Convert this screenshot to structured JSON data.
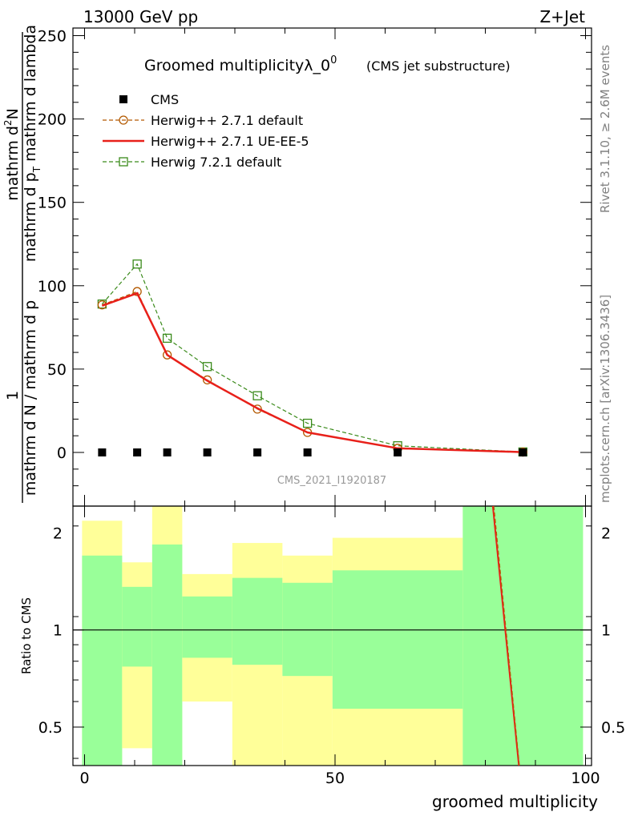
{
  "header": {
    "left": "13000 GeV pp",
    "right": "Z+Jet"
  },
  "side_labels": {
    "rivet": "Rivet 3.1.10, ≥ 2.6M events",
    "mcplots": "mcplots.cern.ch [arXiv:1306.3436]"
  },
  "chart_data": {
    "type": "line",
    "title": "Groomed multiplicityλ_0",
    "title_superscript": "0",
    "subtitle": "(CMS jet substructure)",
    "watermark": "CMS_2021_I1920187",
    "ylabel": {
      "numerator_left": "1",
      "denominator_left": "mathrm d N / mathrm d p",
      "numerator_right": "mathrm d",
      "numerator_right_sup": "2",
      "numerator_right_tail": "N",
      "denominator_right": "mathrm d p",
      "denominator_right_mid": " mathrm d lambda",
      "sub_T": "T"
    },
    "xlabel": "groomed multiplicity",
    "xlim": [
      -2,
      100
    ],
    "ylim": [
      -30,
      255
    ],
    "yticks": [
      "0",
      "50",
      "100",
      "150",
      "200",
      "250"
    ],
    "xticks": [
      "0",
      "50",
      "100"
    ],
    "legend_position": "top-left",
    "series": [
      {
        "name": "CMS",
        "color": "#000000",
        "marker": "filled-square",
        "x": [
          3.5,
          10.5,
          16.5,
          24.5,
          34.5,
          44.5,
          62.5,
          87.5
        ],
        "y": [
          0,
          0,
          0,
          0,
          0,
          0,
          0,
          0
        ]
      },
      {
        "name": "Herwig++ 2.7.1 default",
        "color": "#b35900",
        "marker": "open-circle",
        "dash": "dashed",
        "x": [
          3.5,
          10.5,
          16.5,
          24.5,
          34.5,
          44.5,
          62.5,
          87.5
        ],
        "y": [
          88.5,
          96.5,
          58.5,
          43.5,
          26,
          12,
          2.5,
          0.2
        ]
      },
      {
        "name": "Herwig++ 2.7.1 UE-EE-5",
        "color": "#e8201a",
        "marker": "none",
        "dash": "solid",
        "x": [
          3.5,
          10.5,
          16.5,
          24.5,
          34.5,
          44.5,
          62.5,
          87.5
        ],
        "y": [
          88,
          95.5,
          58.5,
          43,
          26.5,
          12,
          2.5,
          0.2
        ]
      },
      {
        "name": "Herwig 7.2.1 default",
        "color": "#3a8a1a",
        "marker": "open-square",
        "dash": "dashed",
        "x": [
          3.5,
          10.5,
          16.5,
          24.5,
          34.5,
          44.5,
          62.5,
          87.5
        ],
        "y": [
          89,
          113,
          68.5,
          51.5,
          34,
          17.5,
          4,
          0.3
        ]
      }
    ],
    "ratio": {
      "ylabel": "Ratio to CMS",
      "yticks": [
        "0.5",
        "1",
        "2"
      ],
      "ylim_log": [
        0.38,
        2.42
      ],
      "bands": [
        {
          "x0": -0.5,
          "x1": 7.5,
          "inner": [
            0.38,
            1.7
          ],
          "outer": [
            0.38,
            2.18
          ]
        },
        {
          "x0": 7.5,
          "x1": 13.5,
          "inner": [
            0.77,
            1.36
          ],
          "outer": [
            0.43,
            1.62
          ]
        },
        {
          "x0": 13.5,
          "x1": 19.5,
          "inner": [
            0.38,
            1.84
          ],
          "outer": [
            0.38,
            2.42
          ]
        },
        {
          "x0": 19.5,
          "x1": 29.5,
          "inner": [
            0.82,
            1.27
          ],
          "outer": [
            0.6,
            1.49
          ]
        },
        {
          "x0": 29.5,
          "x1": 39.5,
          "inner": [
            0.78,
            1.45
          ],
          "outer": [
            0.38,
            1.86
          ]
        },
        {
          "x0": 39.5,
          "x1": 49.5,
          "inner": [
            0.72,
            1.4
          ],
          "outer": [
            0.38,
            1.7
          ]
        },
        {
          "x0": 49.5,
          "x1": 75.5,
          "inner": [
            0.57,
            1.53
          ],
          "outer": [
            0.38,
            1.93
          ]
        },
        {
          "x0": 75.5,
          "x1": 99.5,
          "inner": [
            0.38,
            2.42
          ],
          "outer": [
            0.38,
            2.42
          ]
        }
      ],
      "lines": [
        {
          "name": "Herwig++ 2.7.1 UE-EE-5",
          "color": "#e8201a",
          "dash": "solid",
          "points": [
            [
              81.5,
              2.45
            ],
            [
              86.7,
              0.36
            ]
          ]
        },
        {
          "name": "Herwig++ 2.7.1 default",
          "color": "#b35900",
          "dash": "dashed",
          "points": [
            [
              81.7,
              2.45
            ],
            [
              86.8,
              0.36
            ]
          ]
        }
      ]
    }
  },
  "colors": {
    "inner_band": "#99ff99",
    "outer_band": "#ffff99",
    "watermark": "#999999",
    "side_text": "#808080"
  }
}
